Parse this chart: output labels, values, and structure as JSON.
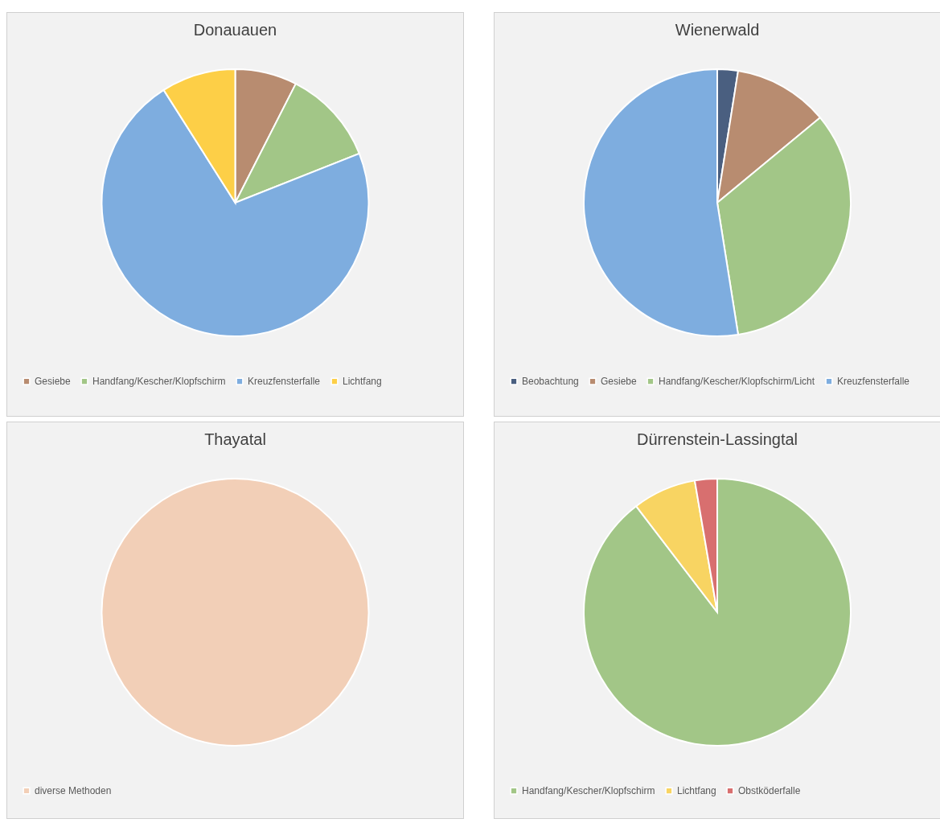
{
  "chart_data": [
    {
      "type": "pie",
      "title": "Donauauen",
      "categories": [
        "Gesiebe",
        "Handfang/Kescher/Klopfschirm",
        "Kreuzfensterfalle",
        "Lichtfang"
      ],
      "values": [
        7.5,
        11.5,
        72,
        9
      ],
      "colors": [
        "#b88c70",
        "#a2c687",
        "#7eaddf",
        "#fdcf47"
      ],
      "legend": "bottom"
    },
    {
      "type": "pie",
      "title": "Wienerwald",
      "categories": [
        "Beobachtung",
        "Gesiebe",
        "Handfang/Kescher/Klopfschirm/Licht",
        "Kreuzfensterfalle"
      ],
      "values": [
        2.5,
        11.5,
        33.5,
        52.5
      ],
      "colors": [
        "#4a5f80",
        "#b88c70",
        "#a2c687",
        "#7eaddf"
      ],
      "legend": "bottom"
    },
    {
      "type": "pie",
      "title": "Thayatal",
      "categories": [
        "diverse Methoden"
      ],
      "values": [
        100
      ],
      "colors": [
        "#f2cfb7"
      ],
      "legend": "bottom"
    },
    {
      "type": "pie",
      "title": "Dürrenstein-Lassingtal",
      "categories": [
        "Handfang/Kescher/Klopfschirm",
        "Lichtfang",
        "Obstköderfalle"
      ],
      "values": [
        89.6,
        7.7,
        2.7
      ],
      "colors": [
        "#a2c687",
        "#f8d462",
        "#d86f6f"
      ],
      "legend": "bottom"
    }
  ]
}
